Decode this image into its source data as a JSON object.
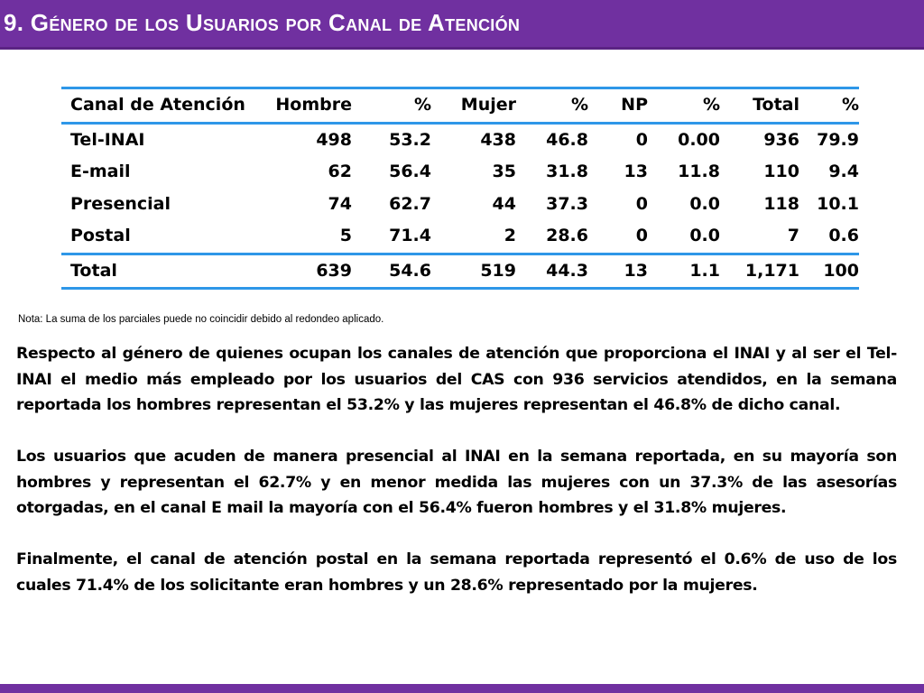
{
  "slide": {
    "title": "9. Género de los Usuarios por Canal de Atención"
  },
  "table": {
    "headers": [
      "Canal de Atención",
      "Hombre",
      "%",
      "Mujer",
      "%",
      "NP",
      "%",
      "Total",
      "%"
    ],
    "rows": [
      [
        "Tel-INAI",
        "498",
        "53.2",
        "438",
        "46.8",
        "0",
        "0.00",
        "936",
        "79.9"
      ],
      [
        "E-mail",
        "62",
        "56.4",
        "35",
        "31.8",
        "13",
        "11.8",
        "110",
        "9.4"
      ],
      [
        "Presencial",
        "74",
        "62.7",
        "44",
        "37.3",
        "0",
        "0.0",
        "118",
        "10.1"
      ],
      [
        "Postal",
        "5",
        "71.4",
        "2",
        "28.6",
        "0",
        "0.0",
        "7",
        "0.6"
      ]
    ],
    "total": [
      "Total",
      "639",
      "54.6",
      "519",
      "44.3",
      "13",
      "1.1",
      "1,171",
      "100"
    ]
  },
  "note": "Nota: La suma de los parciales puede no coincidir debido al redondeo aplicado.",
  "paragraphs": [
    "Respecto al género de quienes ocupan los canales de atención que proporciona el INAI y al ser el Tel-INAI el medio más empleado por los usuarios del CAS con 936 servicios atendidos, en la semana reportada los hombres representan el 53.2% y las mujeres representan el 46.8%  de dicho canal.",
    "Los usuarios que acuden de manera presencial al INAI en la semana reportada, en su mayoría son hombres y representan el 62.7% y en menor medida las mujeres con un 37.3% de las asesorías otorgadas, en el canal E mail la mayoría con el 56.4% fueron hombres y el 31.8% mujeres.",
    "Finalmente, el canal de atención postal en la semana reportada representó el 0.6% de uso de los cuales 71.4% de los solicitante eran hombres y un 28.6% representado por la mujeres."
  ],
  "colors": {
    "title_bar": "#7030a0",
    "table_rule": "#2e97e8",
    "text": "#000000"
  }
}
